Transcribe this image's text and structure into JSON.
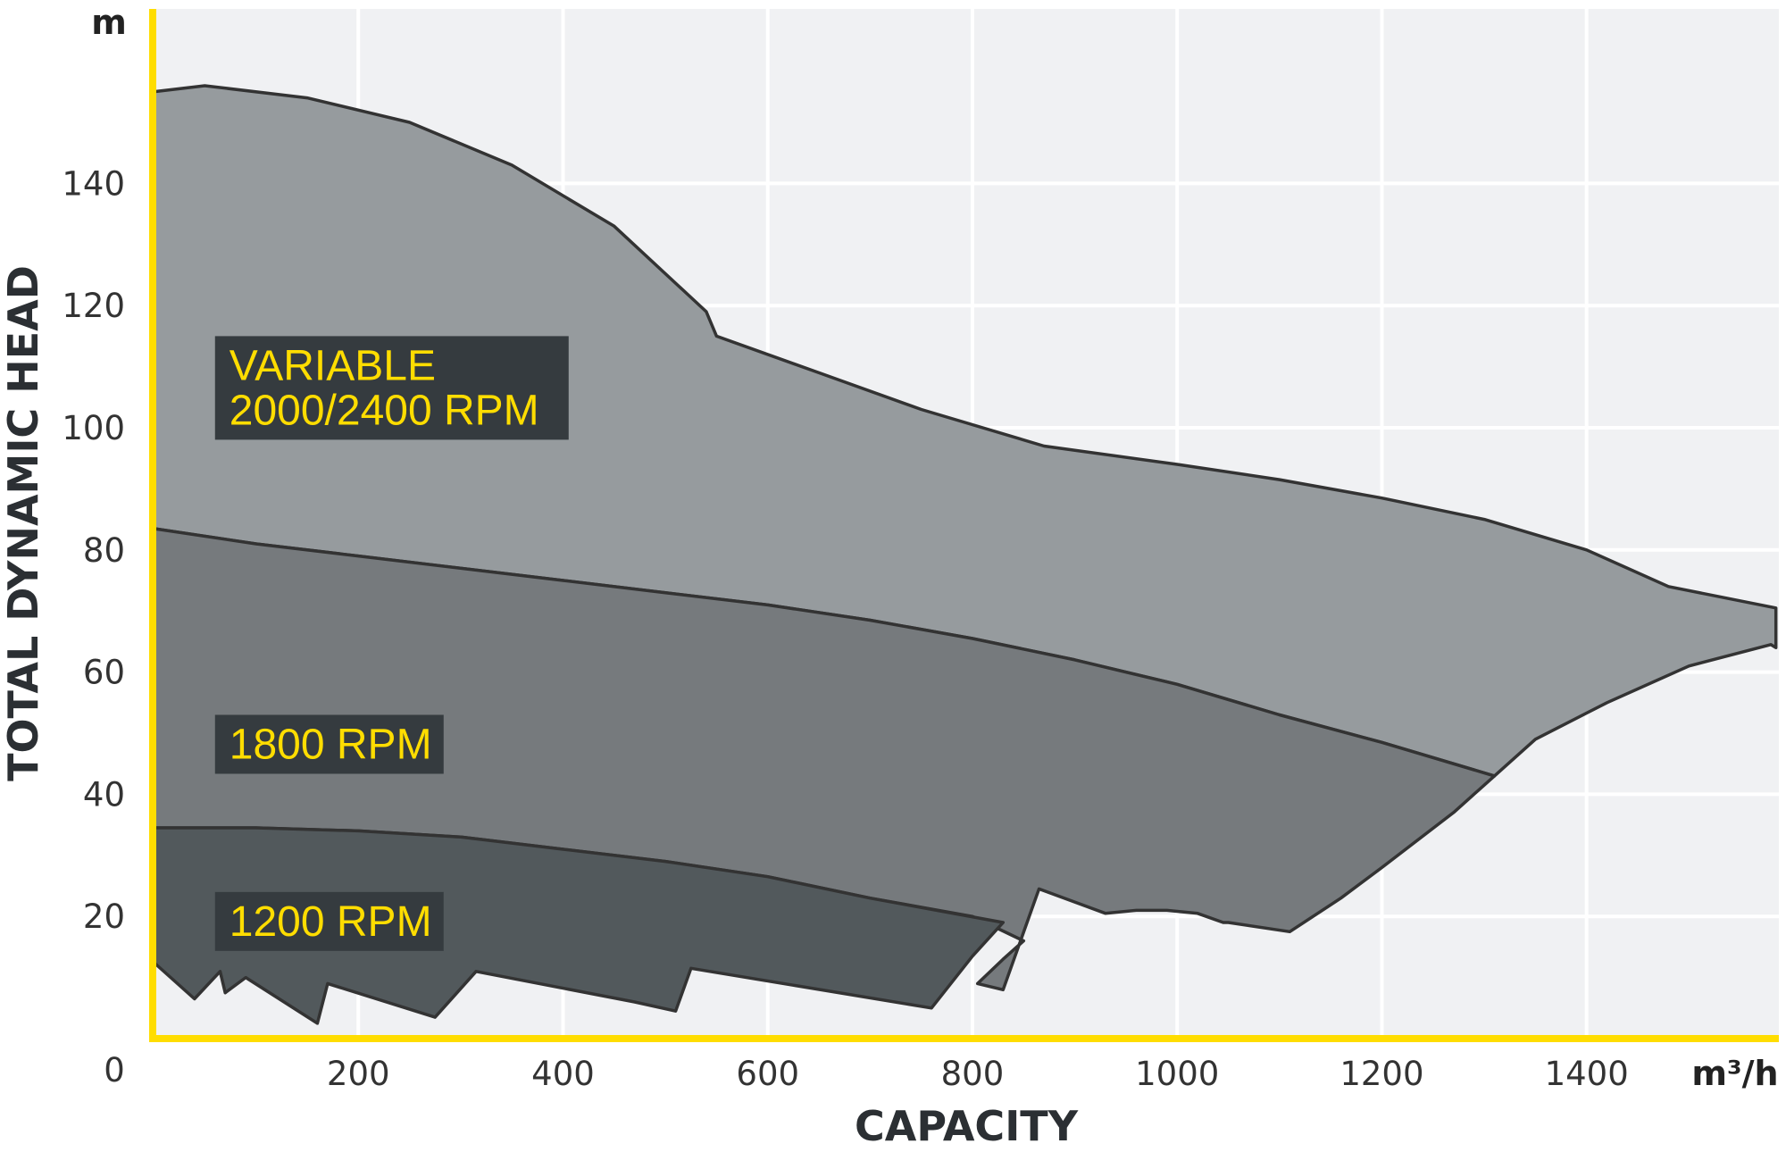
{
  "colors": {
    "background_plot": "#f0f1f3",
    "grid": "#ffffff",
    "axis": "#ffdd00",
    "variable_fill": "#969b9e",
    "rpm1800_fill": "#767a7d",
    "rpm1200_fill": "#52595c",
    "outline": "#333333",
    "label_box": "#353b3f",
    "label_text": "#ffdd00"
  },
  "chart_data": {
    "type": "area",
    "title": "",
    "xlabel": "CAPACITY",
    "ylabel": "TOTAL DYNAMIC HEAD",
    "x_unit": "m³/h",
    "y_unit": "m",
    "xlim": [
      0,
      1600
    ],
    "ylim": [
      0,
      168
    ],
    "x_ticks": [
      200,
      400,
      600,
      800,
      1000,
      1200,
      1400
    ],
    "y_ticks": [
      20,
      40,
      60,
      80,
      100,
      120,
      140
    ],
    "origin_label": "0",
    "grid": true,
    "series": [
      {
        "name": "VARIABLE 2000/2400 RPM",
        "values": [
          [
            0,
            155
          ],
          [
            50,
            156
          ],
          [
            150,
            154
          ],
          [
            250,
            150
          ],
          [
            350,
            143
          ],
          [
            450,
            133
          ],
          [
            540,
            119
          ],
          [
            550,
            115
          ],
          [
            650,
            109
          ],
          [
            750,
            103
          ],
          [
            870,
            97
          ],
          [
            1000,
            94
          ],
          [
            1100,
            91.5
          ],
          [
            1200,
            88.5
          ],
          [
            1300,
            85
          ],
          [
            1400,
            80
          ],
          [
            1480,
            74
          ],
          [
            1585,
            70.5
          ],
          [
            1585,
            64
          ],
          [
            1580,
            64.5
          ],
          [
            1500,
            61
          ],
          [
            1420,
            55
          ],
          [
            1350,
            49
          ],
          [
            1310,
            43
          ],
          [
            1200,
            48.5
          ],
          [
            1100,
            53
          ],
          [
            1000,
            58
          ],
          [
            900,
            62
          ],
          [
            800,
            65.5
          ],
          [
            700,
            68.5
          ],
          [
            600,
            71
          ],
          [
            500,
            73
          ],
          [
            400,
            75
          ],
          [
            200,
            79
          ],
          [
            100,
            81
          ],
          [
            0,
            83.5
          ]
        ]
      },
      {
        "name": "1800 RPM",
        "values": [
          [
            0,
            83.5
          ],
          [
            100,
            81
          ],
          [
            200,
            79
          ],
          [
            400,
            75
          ],
          [
            500,
            73
          ],
          [
            600,
            71
          ],
          [
            700,
            68.5
          ],
          [
            800,
            65.5
          ],
          [
            900,
            62
          ],
          [
            1000,
            58
          ],
          [
            1100,
            53
          ],
          [
            1200,
            48.5
          ],
          [
            1310,
            43
          ],
          [
            1270,
            37
          ],
          [
            1200,
            28
          ],
          [
            1160,
            23
          ],
          [
            1110,
            17.5
          ],
          [
            1050,
            19
          ],
          [
            1045,
            19
          ],
          [
            1020,
            20.5
          ],
          [
            990,
            21
          ],
          [
            960,
            21
          ],
          [
            930,
            20.5
          ],
          [
            865,
            24.5
          ],
          [
            830,
            8
          ],
          [
            805,
            9
          ],
          [
            830,
            13
          ],
          [
            850,
            16
          ],
          [
            800,
            20
          ],
          [
            700,
            23
          ],
          [
            600,
            26.5
          ],
          [
            500,
            29
          ],
          [
            400,
            31
          ],
          [
            300,
            33
          ],
          [
            200,
            34
          ],
          [
            100,
            34.5
          ],
          [
            0,
            34.5
          ]
        ]
      },
      {
        "name": "1200 RPM",
        "values": [
          [
            0,
            34.5
          ],
          [
            100,
            34.5
          ],
          [
            200,
            34
          ],
          [
            300,
            33
          ],
          [
            400,
            31
          ],
          [
            500,
            29
          ],
          [
            600,
            26.5
          ],
          [
            700,
            23
          ],
          [
            830,
            19
          ],
          [
            800,
            13.5
          ],
          [
            760,
            5
          ],
          [
            525,
            11.5
          ],
          [
            510,
            4.5
          ],
          [
            470,
            6
          ],
          [
            315,
            11
          ],
          [
            275,
            3.5
          ],
          [
            170,
            9
          ],
          [
            160,
            2.5
          ],
          [
            90,
            10
          ],
          [
            70,
            7.5
          ],
          [
            65,
            11
          ],
          [
            40,
            6.5
          ],
          [
            0,
            12.5
          ]
        ]
      }
    ],
    "annotations": [
      {
        "series": "VARIABLE 2000/2400 RPM",
        "lines": [
          "VARIABLE",
          "2000/2400 RPM"
        ],
        "x": 60,
        "y": 115
      },
      {
        "series": "1800 RPM",
        "lines": [
          "1800 RPM"
        ],
        "x": 60,
        "y": 53
      },
      {
        "series": "1200 RPM",
        "lines": [
          "1200 RPM"
        ],
        "x": 60,
        "y": 24
      }
    ]
  }
}
